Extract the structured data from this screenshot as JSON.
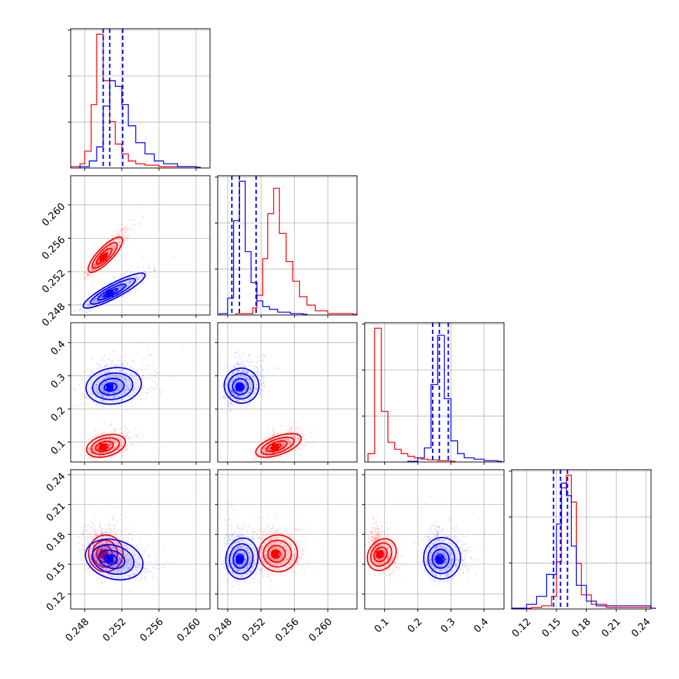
{
  "chart_data": {
    "type": "corner",
    "parameters": [
      {
        "ticks": [
          "0.248",
          "0.252",
          "0.256",
          "0.260"
        ],
        "range": [
          0.2465,
          0.2615
        ]
      },
      {
        "ticks": [
          "0.248",
          "0.252",
          "0.256",
          "0.260"
        ],
        "range": [
          0.2468,
          0.2635
        ]
      },
      {
        "ticks": [
          "0.1",
          "0.2",
          "0.3",
          "0.4"
        ],
        "range": [
          0.04,
          0.46
        ]
      },
      {
        "ticks": [
          "0.12",
          "0.15",
          "0.18",
          "0.21",
          "0.24"
        ],
        "range": [
          0.105,
          0.245
        ]
      }
    ],
    "grid": true,
    "series": [
      {
        "color": "#ff0000",
        "modes": [
          0.25,
          0.2537,
          0.085,
          0.16
        ],
        "spread": [
          0.0008,
          0.001,
          0.015,
          0.008
        ],
        "hist": [
          {
            "x": [
              0.2465,
              0.2475,
              0.248,
              0.2487,
              0.2493,
              0.25,
              0.2507,
              0.2513,
              0.252,
              0.2527,
              0.2535,
              0.2545,
              0.256,
              0.26
            ],
            "y": [
              0.01,
              0.03,
              0.12,
              0.45,
              0.95,
              0.62,
              0.33,
              0.17,
              0.1,
              0.05,
              0.03,
              0.02,
              0.01,
              0.005
            ]
          },
          {
            "x": [
              0.249,
              0.251,
              0.2515,
              0.2522,
              0.2528,
              0.2535,
              0.2542,
              0.255,
              0.2558,
              0.2566,
              0.2575,
              0.2585,
              0.26,
              0.263
            ],
            "y": [
              0.01,
              0.05,
              0.14,
              0.4,
              0.72,
              0.9,
              0.58,
              0.38,
              0.24,
              0.13,
              0.07,
              0.03,
              0.01,
              0.005
            ]
          },
          {
            "x": [
              0.05,
              0.07,
              0.09,
              0.11,
              0.13,
              0.15,
              0.17,
              0.19,
              0.21,
              0.23,
              0.26,
              0.3
            ],
            "y": [
              0.06,
              0.95,
              0.36,
              0.14,
              0.09,
              0.06,
              0.04,
              0.03,
              0.02,
              0.015,
              0.01,
              0.005
            ]
          },
          {
            "x": [
              0.105,
              0.125,
              0.135,
              0.145,
              0.15,
              0.155,
              0.16,
              0.165,
              0.17,
              0.175,
              0.185,
              0.2,
              0.245
            ],
            "y": [
              0.005,
              0.01,
              0.02,
              0.08,
              0.3,
              0.77,
              0.85,
              0.68,
              0.29,
              0.09,
              0.03,
              0.01,
              0.005
            ]
          }
        ]
      },
      {
        "color": "#0000ff",
        "modes": [
          0.2507,
          0.2494,
          0.265,
          0.155
        ],
        "spread": [
          0.0012,
          0.0008,
          0.024,
          0.009
        ],
        "hist": [
          {
            "x": [
              0.2475,
              0.2485,
              0.2493,
              0.25,
              0.2507,
              0.2513,
              0.252,
              0.2527,
              0.2535,
              0.2545,
              0.2555,
              0.2565,
              0.258,
              0.26
            ],
            "y": [
              0.01,
              0.05,
              0.15,
              0.44,
              0.62,
              0.58,
              0.45,
              0.3,
              0.18,
              0.1,
              0.05,
              0.03,
              0.01,
              0.005
            ]
          },
          {
            "x": [
              0.247,
              0.248,
              0.2487,
              0.2494,
              0.2501,
              0.2508,
              0.2515,
              0.2522,
              0.253,
              0.254,
              0.2555,
              0.257
            ],
            "y": [
              0.01,
              0.12,
              0.67,
              0.95,
              0.45,
              0.23,
              0.1,
              0.06,
              0.04,
              0.02,
              0.01,
              0.005
            ]
          },
          {
            "x": [
              0.17,
              0.2,
              0.22,
              0.24,
              0.26,
              0.28,
              0.3,
              0.32,
              0.34,
              0.37,
              0.4,
              0.44
            ],
            "y": [
              0.005,
              0.03,
              0.1,
              0.55,
              0.9,
              0.45,
              0.15,
              0.06,
              0.03,
              0.02,
              0.01,
              0.005
            ]
          },
          {
            "x": [
              0.105,
              0.12,
              0.13,
              0.14,
              0.15,
              0.155,
              0.16,
              0.165,
              0.17,
              0.18,
              0.19,
              0.245
            ],
            "y": [
              0.005,
              0.03,
              0.08,
              0.22,
              0.54,
              0.8,
              0.72,
              0.4,
              0.15,
              0.05,
              0.02,
              0.005
            ]
          }
        ],
        "quantiles": [
          [
            0.25,
            0.2507,
            0.2521
          ],
          [
            0.2485,
            0.2494,
            0.2514
          ],
          [
            0.245,
            0.265,
            0.292
          ],
          [
            0.147,
            0.154,
            0.161
          ]
        ]
      }
    ],
    "pair_correlation": {
      "red": [
        [
          0,
          1,
          0.92
        ],
        [
          0,
          2,
          0.4
        ],
        [
          1,
          2,
          0.6
        ],
        [
          0,
          3,
          0.0
        ],
        [
          1,
          3,
          0.0
        ],
        [
          2,
          3,
          -0.4
        ]
      ],
      "blue": [
        [
          0,
          1,
          0.88
        ],
        [
          0,
          2,
          0.2
        ],
        [
          1,
          2,
          0.3
        ],
        [
          0,
          3,
          -0.35
        ],
        [
          1,
          3,
          -0.1
        ],
        [
          2,
          3,
          0.0
        ]
      ]
    }
  }
}
